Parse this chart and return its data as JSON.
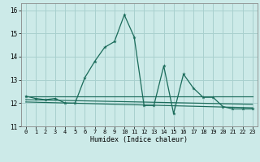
{
  "title": "",
  "xlabel": "Humidex (Indice chaleur)",
  "xlim": [
    -0.5,
    23.5
  ],
  "ylim": [
    11,
    16.3
  ],
  "yticks": [
    11,
    12,
    13,
    14,
    15,
    16
  ],
  "xticks": [
    0,
    1,
    2,
    3,
    4,
    5,
    6,
    7,
    8,
    9,
    10,
    11,
    12,
    13,
    14,
    15,
    16,
    17,
    18,
    19,
    20,
    21,
    22,
    23
  ],
  "bg_color": "#cceae8",
  "grid_color": "#a8d0ce",
  "line_color": "#1a6b5a",
  "line1_x": [
    0,
    1,
    2,
    3,
    4,
    5,
    6,
    7,
    8,
    9,
    10,
    11,
    12,
    13,
    14,
    15,
    16,
    17,
    18,
    19,
    20,
    21,
    22,
    23
  ],
  "line1_y": [
    12.3,
    12.2,
    12.15,
    12.2,
    12.0,
    12.0,
    13.1,
    13.8,
    14.4,
    14.65,
    15.8,
    14.85,
    11.9,
    11.9,
    13.6,
    11.55,
    13.25,
    12.65,
    12.25,
    12.25,
    11.85,
    11.75,
    11.75,
    11.75
  ],
  "trend1_x": [
    0,
    23
  ],
  "trend1_y": [
    12.3,
    12.3
  ],
  "trend2_x": [
    0,
    23
  ],
  "trend2_y": [
    12.15,
    11.95
  ],
  "trend3_x": [
    0,
    23
  ],
  "trend3_y": [
    12.05,
    11.8
  ]
}
